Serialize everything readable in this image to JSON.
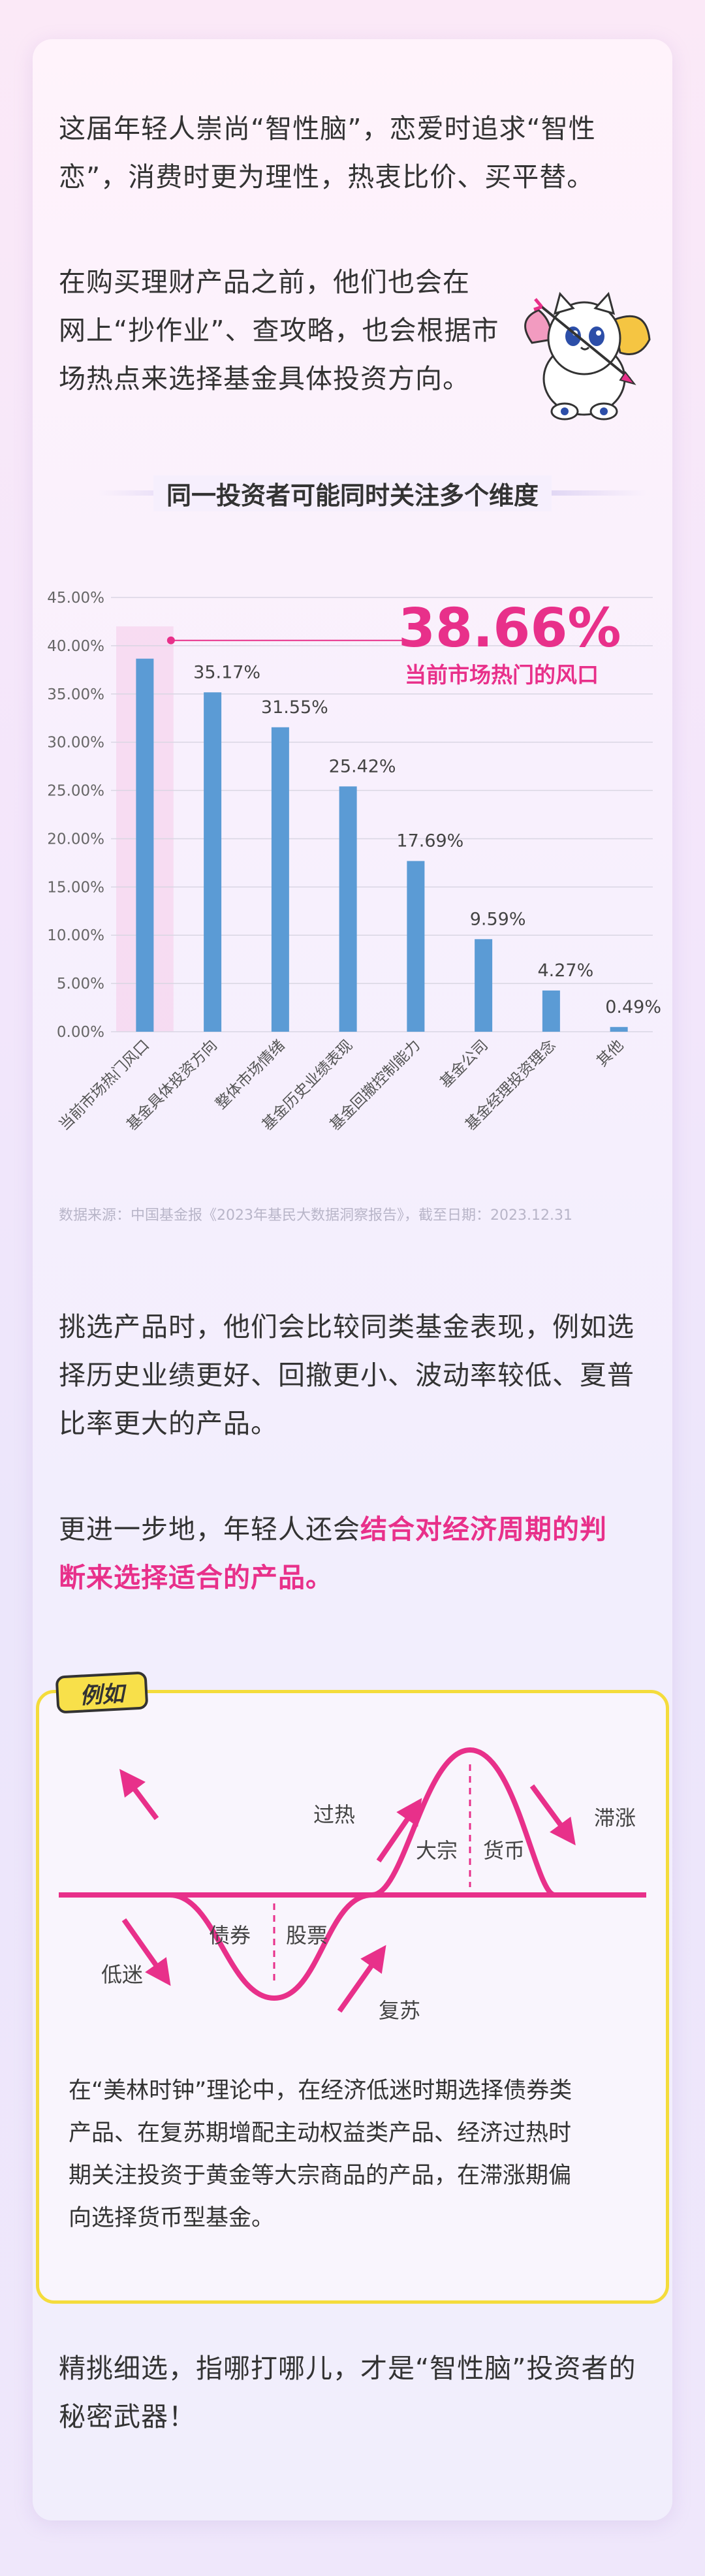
{
  "intro": {
    "p1_line1": "这届年轻人崇尚“智性脑”，恋爱时追求“智性",
    "p1_line2": "恋”，消费时更为理性，热衷比价、买平替。",
    "p2_line1": "在购买理财产品之前，他们也会在",
    "p2_line2": "网上“抄作业”、查攻略，也会根据市",
    "p2_line3": "场热点来选择基金具体投资方向。"
  },
  "chart_section": {
    "title": "同一投资者可能同时关注多个维度",
    "highlight_value": "38.66%",
    "highlight_label": "当前市场热门的风口",
    "source": "数据来源：中国基金报《2023年基民大数据洞察报告》，截至日期：2023.12.31"
  },
  "chart_data": {
    "type": "bar",
    "categories": [
      "当前市场热门风口",
      "基金具体投资方向",
      "整体市场情绪",
      "基金历史业绩表现",
      "基金回撤控制能力",
      "基金公司",
      "基金经理投资理念",
      "其他"
    ],
    "values": [
      38.66,
      35.17,
      31.55,
      25.42,
      17.69,
      9.59,
      4.27,
      0.49
    ],
    "value_labels": [
      "",
      "35.17%",
      "31.55%",
      "25.42%",
      "17.69%",
      "9.59%",
      "4.27%",
      "0.49%"
    ],
    "ylim": [
      0,
      45
    ],
    "yticks": [
      "0.00%",
      "5.00%",
      "10.00%",
      "15.00%",
      "20.00%",
      "25.00%",
      "30.00%",
      "35.00%",
      "40.00%",
      "45.00%"
    ],
    "bar_color": "#5b9bd5",
    "highlight_color": "#e8308a",
    "grid": true
  },
  "body": {
    "p3_line1": "挑选产品时，他们会比较同类基金表现，例如选",
    "p3_line2": "择历史业绩更好、回撤更小、波动率较低、夏普",
    "p3_line3": "比率更大的产品。",
    "p4_line1_a": "更进一步地，年轻人还会",
    "p4_line1_b": "结合对经济周期的判",
    "p4_line2": "断来选择适合的产品。"
  },
  "example": {
    "tag": "例如",
    "labels": {
      "overheat": "过热",
      "stagflation": "滞涨",
      "recession": "低迷",
      "recovery": "复苏",
      "bonds": "债券",
      "stocks": "股票",
      "commodities": "大宗",
      "cash": "货币"
    },
    "text_line1": "在“美林时钟”理论中，在经济低迷时期选择债券类",
    "text_line2": "产品、在复苏期增配主动权益类产品、经济过热时",
    "text_line3": "期关注投资于黄金等大宗商品的产品，在滞涨期偏",
    "text_line4": "向选择货币型基金。"
  },
  "outro": {
    "line1": "精挑细选，指哪打哪儿，才是“智性脑”投资者的",
    "line2": "秘密武器！"
  },
  "colors": {
    "accent": "#e8308a",
    "bar": "#5b9bd5",
    "frame": "#f4dc3c"
  }
}
